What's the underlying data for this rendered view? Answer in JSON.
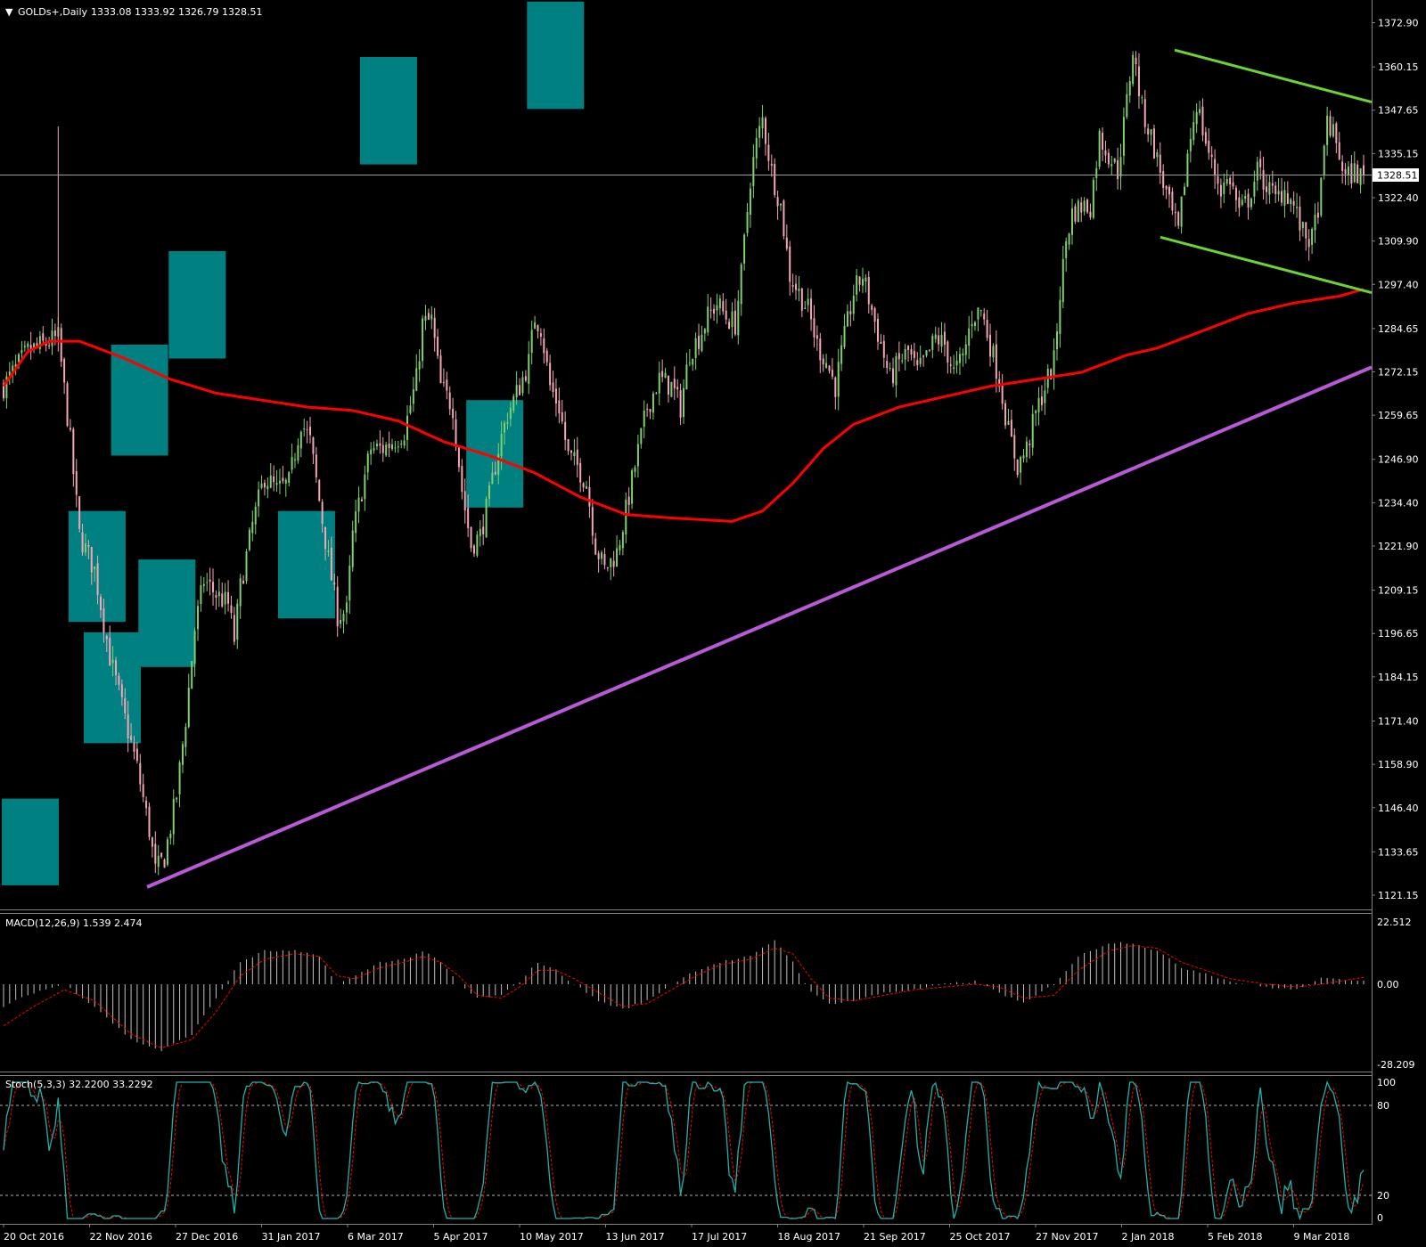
{
  "header": {
    "symbol": "GOLDs+,Daily",
    "ohlc": "1333.08 1333.92 1326.79 1328.51"
  },
  "current_price_label": "1328.51",
  "colors": {
    "background": "#000000",
    "up_candle": "#7fd06e",
    "down_candle": "#f4a6b4",
    "ma": "#ff0000",
    "trend_line": "#b75ad8",
    "channel": "#6dd335",
    "zone": "#008080",
    "macd_hist": "#c0c0c0",
    "macd_signal": "#ff0000",
    "stoch_main": "#20b2aa",
    "stoch_signal": "#ff0000"
  },
  "x_axis_labels": [
    "20 Oct 2016",
    "22 Nov 2016",
    "27 Dec 2016",
    "31 Jan 2017",
    "6 Mar 2017",
    "5 Apr 2017",
    "10 May 2017",
    "13 Jun 2017",
    "17 Jul 2017",
    "18 Aug 2017",
    "21 Sep 2017",
    "25 Oct 2017",
    "27 Nov 2017",
    "2 Jan 2018",
    "5 Feb 2018",
    "9 Mar 2018"
  ],
  "macd": {
    "label": "MACD(12,26,9) 1.539 2.474",
    "ticks": [
      "22.512",
      "0.00",
      "-28.209"
    ]
  },
  "stoch": {
    "label": "Stoch(5,3,3) 32.2200 33.2292",
    "ticks": [
      "100",
      "80",
      "20",
      "0"
    ]
  },
  "chart_data": {
    "type": "candlestick",
    "title": "GOLDs+,Daily",
    "ylim": [
      1118,
      1378
    ],
    "y_ticks": [
      "1372.90",
      "1360.15",
      "1347.65",
      "1335.15",
      "1322.40",
      "1309.90",
      "1297.40",
      "1284.65",
      "1272.15",
      "1259.65",
      "1246.90",
      "1234.40",
      "1221.90",
      "1209.15",
      "1196.65",
      "1184.15",
      "1171.40",
      "1158.90",
      "1146.40",
      "1133.65",
      "1121.15"
    ],
    "x_labels": [
      "20 Oct 2016",
      "22 Nov 2016",
      "27 Dec 2016",
      "31 Jan 2017",
      "6 Mar 2017",
      "5 Apr 2017",
      "10 May 2017",
      "13 Jun 2017",
      "17 Jul 2017",
      "18 Aug 2017",
      "21 Sep 2017",
      "25 Oct 2017",
      "27 Nov 2017",
      "2 Jan 2018",
      "5 Feb 2018",
      "9 Mar 2018"
    ],
    "close_path": [
      [
        0,
        1268
      ],
      [
        8,
        1278
      ],
      [
        18,
        1282
      ],
      [
        22,
        1252
      ],
      [
        25,
        1225
      ],
      [
        30,
        1215
      ],
      [
        35,
        1190
      ],
      [
        40,
        1172
      ],
      [
        44,
        1158
      ],
      [
        48,
        1140
      ],
      [
        50,
        1128
      ],
      [
        53,
        1132
      ],
      [
        57,
        1150
      ],
      [
        60,
        1172
      ],
      [
        63,
        1198
      ],
      [
        66,
        1212
      ],
      [
        70,
        1208
      ],
      [
        74,
        1205
      ],
      [
        76,
        1195
      ],
      [
        78,
        1210
      ],
      [
        82,
        1228
      ],
      [
        86,
        1242
      ],
      [
        90,
        1238
      ],
      [
        94,
        1240
      ],
      [
        98,
        1258
      ],
      [
        101,
        1252
      ],
      [
        104,
        1235
      ],
      [
        107,
        1218
      ],
      [
        110,
        1202
      ],
      [
        113,
        1203
      ],
      [
        115,
        1225
      ],
      [
        118,
        1238
      ],
      [
        121,
        1250
      ],
      [
        125,
        1250
      ],
      [
        128,
        1252
      ],
      [
        132,
        1255
      ],
      [
        136,
        1270
      ],
      [
        138,
        1286
      ],
      [
        141,
        1287
      ],
      [
        144,
        1268
      ],
      [
        148,
        1262
      ],
      [
        151,
        1238
      ],
      [
        154,
        1222
      ],
      [
        157,
        1225
      ],
      [
        160,
        1236
      ],
      [
        163,
        1250
      ],
      [
        166,
        1260
      ],
      [
        170,
        1268
      ],
      [
        173,
        1275
      ],
      [
        175,
        1288
      ],
      [
        177,
        1285
      ],
      [
        180,
        1268
      ],
      [
        183,
        1262
      ],
      [
        186,
        1248
      ],
      [
        189,
        1245
      ],
      [
        192,
        1240
      ],
      [
        195,
        1222
      ],
      [
        198,
        1215
      ],
      [
        202,
        1220
      ],
      [
        205,
        1232
      ],
      [
        208,
        1245
      ],
      [
        212,
        1262
      ],
      [
        216,
        1270
      ],
      [
        220,
        1268
      ],
      [
        223,
        1262
      ],
      [
        226,
        1278
      ],
      [
        229,
        1282
      ],
      [
        232,
        1288
      ],
      [
        235,
        1292
      ],
      [
        238,
        1288
      ],
      [
        241,
        1286
      ],
      [
        243,
        1300
      ],
      [
        246,
        1328
      ],
      [
        248,
        1338
      ],
      [
        250,
        1345
      ],
      [
        253,
        1330
      ],
      [
        256,
        1320
      ],
      [
        259,
        1300
      ],
      [
        262,
        1295
      ],
      [
        265,
        1290
      ],
      [
        268,
        1280
      ],
      [
        271,
        1275
      ],
      [
        274,
        1268
      ],
      [
        277,
        1282
      ],
      [
        280,
        1295
      ],
      [
        283,
        1300
      ],
      [
        286,
        1290
      ],
      [
        289,
        1280
      ],
      [
        292,
        1270
      ],
      [
        295,
        1275
      ],
      [
        298,
        1278
      ],
      [
        301,
        1272
      ],
      [
        304,
        1276
      ],
      [
        307,
        1282
      ],
      [
        310,
        1280
      ],
      [
        313,
        1272
      ],
      [
        316,
        1276
      ],
      [
        319,
        1288
      ],
      [
        322,
        1290
      ],
      [
        325,
        1280
      ],
      [
        328,
        1270
      ],
      [
        331,
        1255
      ],
      [
        334,
        1245
      ],
      [
        337,
        1250
      ],
      [
        340,
        1260
      ],
      [
        343,
        1268
      ],
      [
        346,
        1275
      ],
      [
        348,
        1295
      ],
      [
        350,
        1310
      ],
      [
        352,
        1318
      ],
      [
        355,
        1320
      ],
      [
        358,
        1320
      ],
      [
        361,
        1340
      ],
      [
        364,
        1335
      ],
      [
        367,
        1330
      ],
      [
        370,
        1350
      ],
      [
        372,
        1365
      ],
      [
        375,
        1348
      ],
      [
        378,
        1340
      ],
      [
        381,
        1330
      ],
      [
        384,
        1320
      ],
      [
        387,
        1312
      ],
      [
        390,
        1335
      ],
      [
        393,
        1350
      ],
      [
        395,
        1342
      ],
      [
        398,
        1332
      ],
      [
        401,
        1325
      ],
      [
        404,
        1328
      ],
      [
        407,
        1318
      ],
      [
        410,
        1322
      ],
      [
        413,
        1330
      ],
      [
        416,
        1326
      ],
      [
        419,
        1322
      ],
      [
        422,
        1325
      ],
      [
        425,
        1320
      ],
      [
        428,
        1312
      ],
      [
        431,
        1310
      ],
      [
        434,
        1325
      ],
      [
        436,
        1345
      ],
      [
        439,
        1338
      ],
      [
        442,
        1328
      ],
      [
        445,
        1330
      ],
      [
        448,
        1328
      ]
    ],
    "ma_path": [
      [
        0,
        1268
      ],
      [
        8,
        1278
      ],
      [
        15,
        1281
      ],
      [
        25,
        1281
      ],
      [
        40,
        1276
      ],
      [
        55,
        1270
      ],
      [
        70,
        1266
      ],
      [
        85,
        1264
      ],
      [
        100,
        1262
      ],
      [
        115,
        1261
      ],
      [
        130,
        1258
      ],
      [
        145,
        1252
      ],
      [
        160,
        1248
      ],
      [
        175,
        1243
      ],
      [
        190,
        1236
      ],
      [
        205,
        1231
      ],
      [
        220,
        1230
      ],
      [
        240,
        1229
      ],
      [
        250,
        1232
      ],
      [
        260,
        1240
      ],
      [
        270,
        1250
      ],
      [
        280,
        1257
      ],
      [
        295,
        1262
      ],
      [
        310,
        1265
      ],
      [
        325,
        1268
      ],
      [
        340,
        1270
      ],
      [
        355,
        1272
      ],
      [
        370,
        1277
      ],
      [
        380,
        1279
      ],
      [
        395,
        1284
      ],
      [
        410,
        1289
      ],
      [
        425,
        1292
      ],
      [
        440,
        1294
      ],
      [
        448,
        1296
      ]
    ],
    "trend_line": [
      [
        1126,
        1123.5
      ],
      [
        1516,
        1273.5
      ]
    ],
    "channel_upper": [
      [
        1292,
        1365
      ],
      [
        1516,
        1350
      ]
    ],
    "channel_lower": [
      [
        1276,
        1311
      ],
      [
        1516,
        1295
      ]
    ],
    "zones": [
      [
        0,
        1124,
        1149
      ],
      [
        22,
        1200,
        1232
      ],
      [
        27,
        1165,
        1197
      ],
      [
        36,
        1248,
        1280
      ],
      [
        45,
        1187,
        1218
      ],
      [
        55,
        1276,
        1307
      ],
      [
        91,
        1201,
        1232
      ],
      [
        118,
        1332,
        1363
      ],
      [
        153,
        1233,
        1264
      ],
      [
        173,
        1348,
        1379
      ]
    ],
    "macd_hist_path": [
      [
        0,
        -8
      ],
      [
        10,
        -3
      ],
      [
        20,
        0
      ],
      [
        30,
        -8
      ],
      [
        42,
        -20
      ],
      [
        52,
        -24
      ],
      [
        62,
        -18
      ],
      [
        70,
        -5
      ],
      [
        78,
        8
      ],
      [
        86,
        12
      ],
      [
        96,
        12
      ],
      [
        104,
        10
      ],
      [
        110,
        0
      ],
      [
        116,
        3
      ],
      [
        124,
        8
      ],
      [
        132,
        9
      ],
      [
        138,
        12
      ],
      [
        144,
        8
      ],
      [
        150,
        0
      ],
      [
        156,
        -5
      ],
      [
        164,
        -4
      ],
      [
        170,
        1
      ],
      [
        176,
        8
      ],
      [
        182,
        5
      ],
      [
        188,
        0
      ],
      [
        196,
        -6
      ],
      [
        204,
        -9
      ],
      [
        212,
        -6
      ],
      [
        220,
        0
      ],
      [
        228,
        5
      ],
      [
        236,
        8
      ],
      [
        246,
        10
      ],
      [
        254,
        16
      ],
      [
        260,
        8
      ],
      [
        266,
        -3
      ],
      [
        272,
        -7
      ],
      [
        280,
        -6
      ],
      [
        290,
        -3
      ],
      [
        300,
        -2
      ],
      [
        310,
        0
      ],
      [
        320,
        1
      ],
      [
        328,
        -3
      ],
      [
        336,
        -7
      ],
      [
        346,
        0
      ],
      [
        354,
        10
      ],
      [
        364,
        15
      ],
      [
        372,
        15
      ],
      [
        380,
        12
      ],
      [
        388,
        6
      ],
      [
        396,
        4
      ],
      [
        404,
        1
      ],
      [
        416,
        -1
      ],
      [
        426,
        -2
      ],
      [
        434,
        2
      ],
      [
        448,
        1.5
      ]
    ],
    "macd_signal_path": [
      [
        0,
        -15
      ],
      [
        10,
        -8
      ],
      [
        20,
        -2
      ],
      [
        30,
        -6
      ],
      [
        42,
        -18
      ],
      [
        52,
        -23
      ],
      [
        62,
        -20
      ],
      [
        70,
        -10
      ],
      [
        78,
        3
      ],
      [
        86,
        9
      ],
      [
        96,
        11
      ],
      [
        104,
        10
      ],
      [
        110,
        3
      ],
      [
        116,
        2
      ],
      [
        124,
        6
      ],
      [
        132,
        8
      ],
      [
        138,
        10
      ],
      [
        144,
        8
      ],
      [
        150,
        3
      ],
      [
        156,
        -4
      ],
      [
        164,
        -5
      ],
      [
        170,
        -1
      ],
      [
        176,
        5
      ],
      [
        182,
        5
      ],
      [
        188,
        2
      ],
      [
        196,
        -3
      ],
      [
        204,
        -8
      ],
      [
        212,
        -7
      ],
      [
        220,
        -2
      ],
      [
        228,
        3
      ],
      [
        236,
        7
      ],
      [
        246,
        9
      ],
      [
        254,
        13
      ],
      [
        260,
        11
      ],
      [
        266,
        2
      ],
      [
        272,
        -5
      ],
      [
        280,
        -6
      ],
      [
        290,
        -4
      ],
      [
        300,
        -2
      ],
      [
        310,
        -1
      ],
      [
        320,
        0
      ],
      [
        328,
        -1
      ],
      [
        336,
        -5
      ],
      [
        346,
        -4
      ],
      [
        354,
        5
      ],
      [
        364,
        12
      ],
      [
        372,
        14
      ],
      [
        380,
        13
      ],
      [
        388,
        8
      ],
      [
        396,
        5
      ],
      [
        404,
        2
      ],
      [
        416,
        0
      ],
      [
        426,
        -1
      ],
      [
        434,
        0
      ],
      [
        448,
        2.5
      ]
    ],
    "stoch_last": [
      32.22,
      33.2292
    ]
  }
}
